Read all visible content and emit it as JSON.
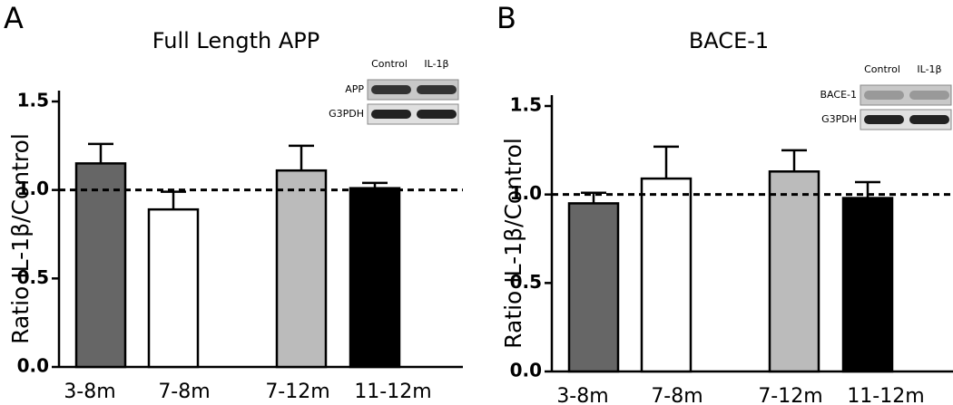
{
  "chart_data": [
    {
      "type": "bar",
      "panel": "A",
      "title": "Full Length APP",
      "y_label": "Ratio IL-1β/Control",
      "categories": [
        "3-8m",
        "7-8m",
        "7-12m",
        "11-12m"
      ],
      "values": [
        1.15,
        0.89,
        1.11,
        1.01
      ],
      "errors": [
        0.11,
        0.1,
        0.14,
        0.03
      ],
      "colors": [
        "#666666",
        "#ffffff",
        "#bbbbbb",
        "#000000"
      ],
      "ylim": [
        0,
        1.5
      ],
      "yticks": [
        {
          "value": 0,
          "label": "0.0"
        },
        0.5,
        {
          "value": 1,
          "label": "1.0"
        },
        1.5
      ],
      "reference_line": 1,
      "inset": {
        "columns": [
          "Control",
          "IL-1β"
        ],
        "rows": [
          "APP",
          "G3PDH"
        ]
      }
    },
    {
      "type": "bar",
      "panel": "B",
      "title": "BACE-1",
      "y_label": "Ratio IL-1β/Control",
      "categories": [
        "3-8m",
        "7-8m",
        "7-12m",
        "11-12m"
      ],
      "values": [
        0.95,
        1.09,
        1.13,
        0.98
      ],
      "errors": [
        0.06,
        0.18,
        0.12,
        0.09
      ],
      "colors": [
        "#666666",
        "#ffffff",
        "#bbbbbb",
        "#000000"
      ],
      "ylim": [
        0,
        1.5
      ],
      "yticks": [
        {
          "value": 0,
          "label": "0.0"
        },
        0.5,
        {
          "value": 1,
          "label": "1.0"
        },
        1.5
      ],
      "reference_line": 1,
      "inset": {
        "columns": [
          "Control",
          "IL-1β"
        ],
        "rows": [
          "BACE-1",
          "G3PDH"
        ]
      }
    }
  ]
}
